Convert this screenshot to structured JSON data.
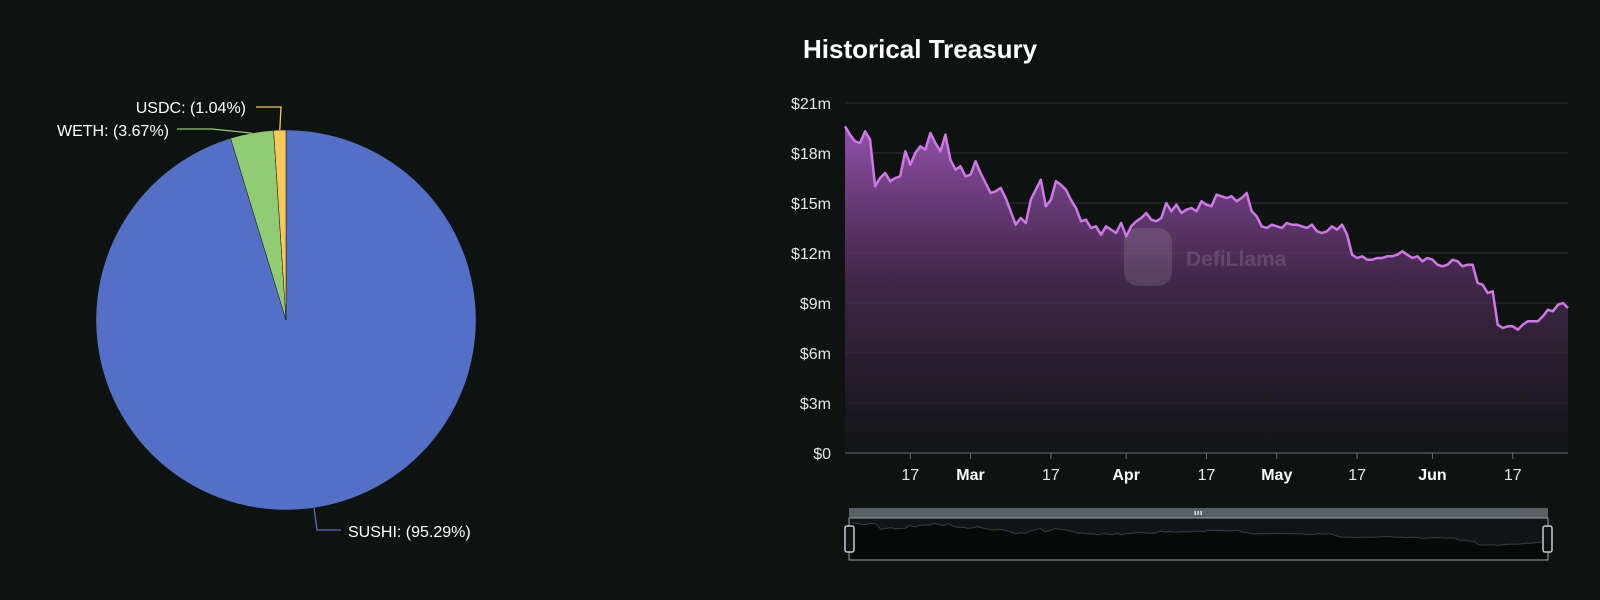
{
  "colors": {
    "background": "#0e1312",
    "sushi": "#5470c6",
    "weth": "#91cc75",
    "usdc": "#fac858",
    "line": "#cf78e8",
    "area_top": "#9b54b3",
    "grid": "#2a2f34",
    "slider_handle_bar": "#5a5f63"
  },
  "pie_chart": {
    "chart_data": {
      "type": "pie",
      "slices": [
        {
          "name": "SUSHI",
          "value": 95.29,
          "label": "SUSHI: (95.29%)"
        },
        {
          "name": "WETH",
          "value": 3.67,
          "label": "WETH: (3.67%)"
        },
        {
          "name": "USDC",
          "value": 1.04,
          "label": "USDC: (1.04%)"
        }
      ]
    }
  },
  "treasury_chart": {
    "title": "Historical Treasury",
    "watermark": "DefiLlama",
    "chart_data": {
      "type": "area",
      "title": "Historical Treasury",
      "y_ticks": [
        "$0",
        "$3m",
        "$6m",
        "$9m",
        "$12m",
        "$15m",
        "$18m",
        "$21m"
      ],
      "x_ticks": [
        {
          "label": "17",
          "date": "2023-02-17",
          "bold": false
        },
        {
          "label": "Mar",
          "date": "2023-03-01",
          "bold": true
        },
        {
          "label": "17",
          "date": "2023-03-17",
          "bold": false
        },
        {
          "label": "Apr",
          "date": "2023-04-01",
          "bold": true
        },
        {
          "label": "17",
          "date": "2023-04-17",
          "bold": false
        },
        {
          "label": "May",
          "date": "2023-05-01",
          "bold": true
        },
        {
          "label": "17",
          "date": "2023-05-17",
          "bold": false
        },
        {
          "label": "Jun",
          "date": "2023-06-01",
          "bold": true
        },
        {
          "label": "17",
          "date": "2023-06-17",
          "bold": false
        }
      ],
      "ylim": [
        0,
        21
      ],
      "xlim": [
        "2023-02-04",
        "2023-06-28"
      ],
      "grid": true,
      "series": [
        {
          "points": [
            [
              "2023-02-04",
              19.6
            ],
            [
              "2023-02-05",
              19.1
            ],
            [
              "2023-02-06",
              18.7
            ],
            [
              "2023-02-07",
              18.6
            ],
            [
              "2023-02-08",
              19.3
            ],
            [
              "2023-02-09",
              18.8
            ],
            [
              "2023-02-10",
              16.0
            ],
            [
              "2023-02-11",
              16.5
            ],
            [
              "2023-02-12",
              16.8
            ],
            [
              "2023-02-13",
              16.3
            ],
            [
              "2023-02-14",
              16.5
            ],
            [
              "2023-02-15",
              16.6
            ],
            [
              "2023-02-16",
              18.1
            ],
            [
              "2023-02-17",
              17.3
            ],
            [
              "2023-02-18",
              18.0
            ],
            [
              "2023-02-19",
              18.4
            ],
            [
              "2023-02-20",
              18.2
            ],
            [
              "2023-02-21",
              19.2
            ],
            [
              "2023-02-22",
              18.6
            ],
            [
              "2023-02-23",
              18.1
            ],
            [
              "2023-02-24",
              19.1
            ],
            [
              "2023-02-25",
              17.6
            ],
            [
              "2023-02-26",
              17.0
            ],
            [
              "2023-02-27",
              17.2
            ],
            [
              "2023-02-28",
              16.6
            ],
            [
              "2023-03-01",
              16.7
            ],
            [
              "2023-03-02",
              17.5
            ],
            [
              "2023-03-03",
              16.8
            ],
            [
              "2023-03-04",
              16.2
            ],
            [
              "2023-03-05",
              15.6
            ],
            [
              "2023-03-06",
              15.7
            ],
            [
              "2023-03-07",
              15.9
            ],
            [
              "2023-03-08",
              15.3
            ],
            [
              "2023-03-09",
              14.5
            ],
            [
              "2023-03-10",
              13.7
            ],
            [
              "2023-03-11",
              14.1
            ],
            [
              "2023-03-12",
              13.8
            ],
            [
              "2023-03-13",
              15.2
            ],
            [
              "2023-03-14",
              15.8
            ],
            [
              "2023-03-15",
              16.4
            ],
            [
              "2023-03-16",
              14.8
            ],
            [
              "2023-03-17",
              15.2
            ],
            [
              "2023-03-18",
              16.3
            ],
            [
              "2023-03-19",
              16.1
            ],
            [
              "2023-03-20",
              15.8
            ],
            [
              "2023-03-21",
              15.2
            ],
            [
              "2023-03-22",
              14.7
            ],
            [
              "2023-03-23",
              13.9
            ],
            [
              "2023-03-24",
              14.0
            ],
            [
              "2023-03-25",
              13.5
            ],
            [
              "2023-03-26",
              13.6
            ],
            [
              "2023-03-27",
              13.1
            ],
            [
              "2023-03-28",
              13.6
            ],
            [
              "2023-03-29",
              13.4
            ],
            [
              "2023-03-30",
              13.2
            ],
            [
              "2023-03-31",
              13.8
            ],
            [
              "2023-04-01",
              13.0
            ],
            [
              "2023-04-02",
              13.6
            ],
            [
              "2023-04-03",
              13.9
            ],
            [
              "2023-04-04",
              14.1
            ],
            [
              "2023-04-05",
              14.4
            ],
            [
              "2023-04-06",
              14.0
            ],
            [
              "2023-04-07",
              13.9
            ],
            [
              "2023-04-08",
              14.1
            ],
            [
              "2023-04-09",
              15.0
            ],
            [
              "2023-04-10",
              14.5
            ],
            [
              "2023-04-11",
              14.9
            ],
            [
              "2023-04-12",
              14.4
            ],
            [
              "2023-04-13",
              14.6
            ],
            [
              "2023-04-14",
              14.7
            ],
            [
              "2023-04-15",
              14.5
            ],
            [
              "2023-04-16",
              15.1
            ],
            [
              "2023-04-17",
              14.9
            ],
            [
              "2023-04-18",
              14.8
            ],
            [
              "2023-04-19",
              15.5
            ],
            [
              "2023-04-20",
              15.4
            ],
            [
              "2023-04-21",
              15.3
            ],
            [
              "2023-04-22",
              15.4
            ],
            [
              "2023-04-23",
              15.1
            ],
            [
              "2023-04-24",
              15.3
            ],
            [
              "2023-04-25",
              15.6
            ],
            [
              "2023-04-26",
              14.5
            ],
            [
              "2023-04-27",
              14.2
            ],
            [
              "2023-04-28",
              13.6
            ],
            [
              "2023-04-29",
              13.5
            ],
            [
              "2023-04-30",
              13.7
            ],
            [
              "2023-05-01",
              13.6
            ],
            [
              "2023-05-02",
              13.5
            ],
            [
              "2023-05-03",
              13.8
            ],
            [
              "2023-05-04",
              13.7
            ],
            [
              "2023-05-05",
              13.7
            ],
            [
              "2023-05-06",
              13.6
            ],
            [
              "2023-05-07",
              13.5
            ],
            [
              "2023-05-08",
              13.7
            ],
            [
              "2023-05-09",
              13.3
            ],
            [
              "2023-05-10",
              13.2
            ],
            [
              "2023-05-11",
              13.3
            ],
            [
              "2023-05-12",
              13.6
            ],
            [
              "2023-05-13",
              13.4
            ],
            [
              "2023-05-14",
              13.7
            ],
            [
              "2023-05-15",
              13.1
            ],
            [
              "2023-05-16",
              11.9
            ],
            [
              "2023-05-17",
              11.7
            ],
            [
              "2023-05-18",
              11.8
            ],
            [
              "2023-05-19",
              11.6
            ],
            [
              "2023-05-20",
              11.6
            ],
            [
              "2023-05-21",
              11.7
            ],
            [
              "2023-05-22",
              11.7
            ],
            [
              "2023-05-23",
              11.8
            ],
            [
              "2023-05-24",
              11.8
            ],
            [
              "2023-05-25",
              11.9
            ],
            [
              "2023-05-26",
              12.1
            ],
            [
              "2023-05-27",
              11.9
            ],
            [
              "2023-05-28",
              11.7
            ],
            [
              "2023-05-29",
              11.8
            ],
            [
              "2023-05-30",
              11.5
            ],
            [
              "2023-05-31",
              11.7
            ],
            [
              "2023-06-01",
              11.6
            ],
            [
              "2023-06-02",
              11.3
            ],
            [
              "2023-06-03",
              11.2
            ],
            [
              "2023-06-04",
              11.3
            ],
            [
              "2023-06-05",
              11.6
            ],
            [
              "2023-06-06",
              11.5
            ],
            [
              "2023-06-07",
              11.2
            ],
            [
              "2023-06-08",
              11.3
            ],
            [
              "2023-06-09",
              11.3
            ],
            [
              "2023-06-10",
              10.2
            ],
            [
              "2023-06-11",
              10.1
            ],
            [
              "2023-06-12",
              9.6
            ],
            [
              "2023-06-13",
              9.7
            ],
            [
              "2023-06-14",
              7.7
            ],
            [
              "2023-06-15",
              7.5
            ],
            [
              "2023-06-16",
              7.6
            ],
            [
              "2023-06-17",
              7.6
            ],
            [
              "2023-06-18",
              7.4
            ],
            [
              "2023-06-19",
              7.7
            ],
            [
              "2023-06-20",
              7.9
            ],
            [
              "2023-06-21",
              7.9
            ],
            [
              "2023-06-22",
              7.9
            ],
            [
              "2023-06-23",
              8.2
            ],
            [
              "2023-06-24",
              8.6
            ],
            [
              "2023-06-25",
              8.5
            ],
            [
              "2023-06-26",
              8.9
            ],
            [
              "2023-06-27",
              9.0
            ],
            [
              "2023-06-28",
              8.7
            ]
          ]
        }
      ]
    }
  }
}
